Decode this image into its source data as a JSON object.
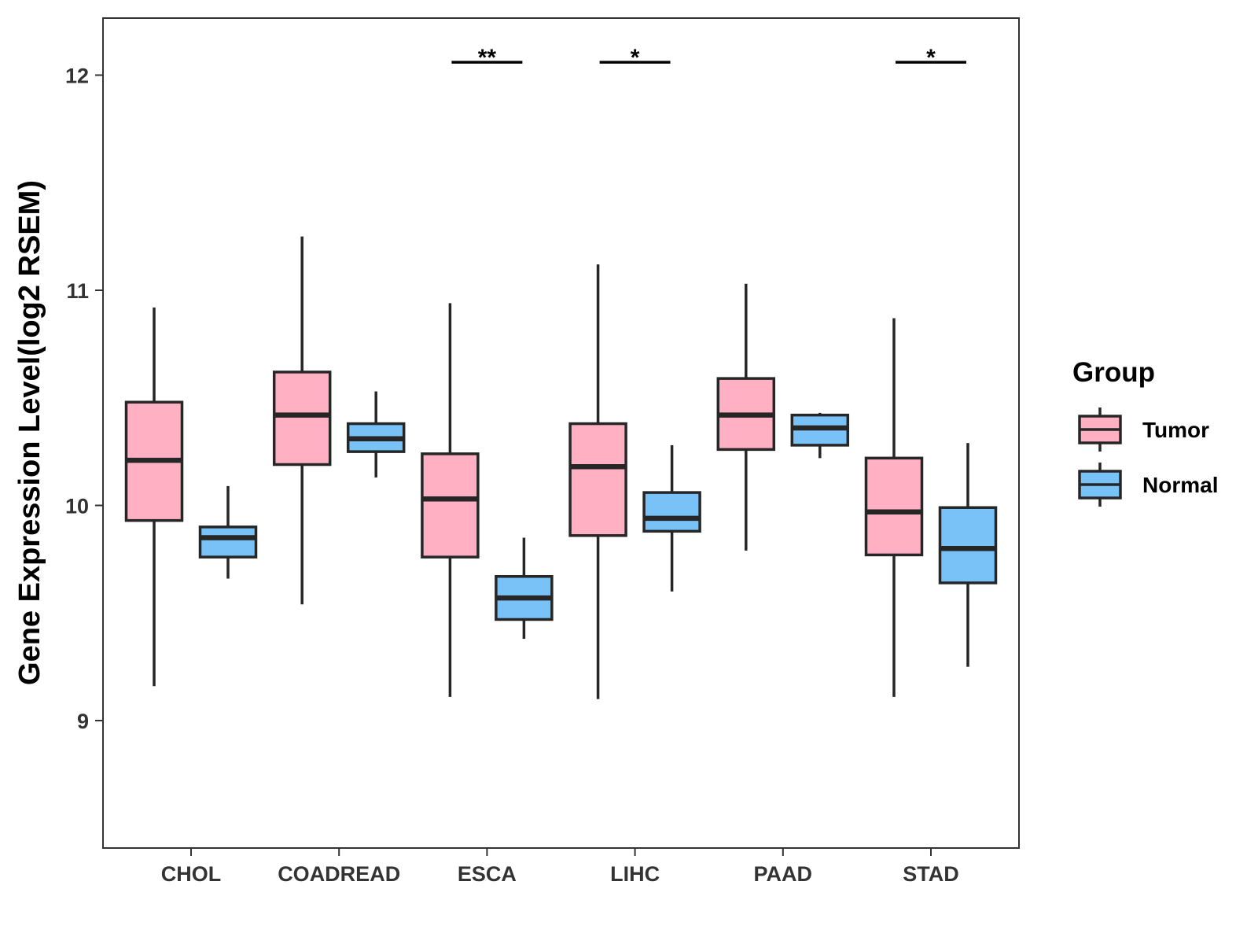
{
  "chart_data": {
    "type": "boxplot",
    "title": "",
    "xlabel": "",
    "ylabel": "Gene Expression Level(log2 RSEM)",
    "ylim": [
      8.4,
      12.25
    ],
    "yticks": [
      9,
      10,
      11,
      12
    ],
    "categories": [
      "CHOL",
      "COADREAD",
      "ESCA",
      "LIHC",
      "PAAD",
      "STAD"
    ],
    "legend": {
      "title": "Group",
      "position": "right",
      "entries": [
        "Tumor",
        "Normal"
      ]
    },
    "colors": {
      "Tumor": "#FFB0C3",
      "Normal": "#78C2F8",
      "outline": "#262626"
    },
    "series": [
      {
        "name": "Tumor",
        "boxes": [
          {
            "min": 9.16,
            "q1": 9.93,
            "median": 10.21,
            "q3": 10.48,
            "max": 10.92
          },
          {
            "min": 9.54,
            "q1": 10.19,
            "median": 10.42,
            "q3": 10.62,
            "max": 11.25
          },
          {
            "min": 9.11,
            "q1": 9.76,
            "median": 10.03,
            "q3": 10.24,
            "max": 10.94
          },
          {
            "min": 9.1,
            "q1": 9.86,
            "median": 10.18,
            "q3": 10.38,
            "max": 11.12
          },
          {
            "min": 9.79,
            "q1": 10.26,
            "median": 10.42,
            "q3": 10.59,
            "max": 11.03
          },
          {
            "min": 9.11,
            "q1": 9.77,
            "median": 9.97,
            "q3": 10.22,
            "max": 10.87
          }
        ]
      },
      {
        "name": "Normal",
        "boxes": [
          {
            "min": 9.66,
            "q1": 9.76,
            "median": 9.85,
            "q3": 9.9,
            "max": 10.09
          },
          {
            "min": 10.13,
            "q1": 10.25,
            "median": 10.31,
            "q3": 10.38,
            "max": 10.53
          },
          {
            "min": 9.38,
            "q1": 9.47,
            "median": 9.57,
            "q3": 9.67,
            "max": 9.85
          },
          {
            "min": 9.6,
            "q1": 9.88,
            "median": 9.94,
            "q3": 10.06,
            "max": 10.28
          },
          {
            "min": 10.22,
            "q1": 10.28,
            "median": 10.36,
            "q3": 10.42,
            "max": 10.43
          },
          {
            "min": 9.25,
            "q1": 9.64,
            "median": 9.8,
            "q3": 9.99,
            "max": 10.29
          }
        ]
      }
    ],
    "significance": [
      {
        "category": "ESCA",
        "label": "**",
        "y": 12.06
      },
      {
        "category": "LIHC",
        "label": "*",
        "y": 12.06
      },
      {
        "category": "STAD",
        "label": "*",
        "y": 12.06
      }
    ]
  }
}
